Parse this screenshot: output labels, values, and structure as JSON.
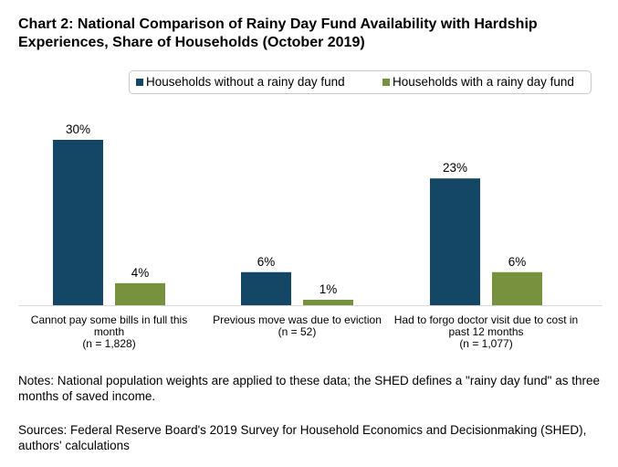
{
  "chart_data": {
    "type": "bar",
    "title": "Chart 2: National Comparison of Rainy Day Fund Availability with Hardship Experiences, Share of Households (October 2019)",
    "xlabel": "",
    "ylabel": "",
    "ylim": [
      0,
      30
    ],
    "grid": false,
    "legend_position": "top-right",
    "unit": "%",
    "categories": [
      [
        "Cannot pay some bills in full this",
        "month",
        "(n = 1,828)"
      ],
      [
        "Previous move was due to eviction",
        "(n = 52)"
      ],
      [
        "Had to forgo doctor visit due to cost in",
        "past 12 months",
        "(n = 1,077)"
      ]
    ],
    "series": [
      {
        "name": "Households without a rainy day fund",
        "color": "#134765",
        "values": [
          30,
          6,
          23
        ],
        "labels": [
          "30%",
          "6%",
          "23%"
        ]
      },
      {
        "name": "Households with a rainy day fund",
        "color": "#77913f",
        "values": [
          4,
          1,
          6
        ],
        "labels": [
          "4%",
          "1%",
          "6%"
        ]
      }
    ]
  },
  "notes": "Notes: National population weights are applied to these data; the SHED defines a \"rainy day fund\" as three months of saved income.",
  "sources": "Sources: Federal Reserve Board's 2019 Survey for Household Economics and Decisionmaking (SHED), authors' calculations"
}
